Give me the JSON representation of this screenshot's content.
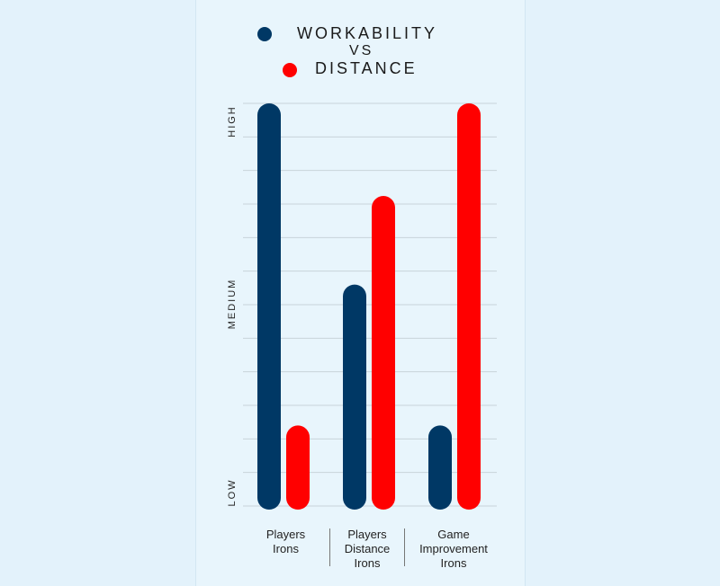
{
  "legend": {
    "series_a": "WORKABILITY",
    "connector": "VS",
    "series_b": "DISTANCE"
  },
  "colors": {
    "workability": "#003865",
    "distance": "#ff0000",
    "grid": "#c9d3da"
  },
  "chart_data": {
    "type": "bar",
    "title": "",
    "categories": [
      "Players Irons",
      "Players Distance Irons",
      "Game Improvement Irons"
    ],
    "category_lines": [
      [
        "Players",
        "Irons"
      ],
      [
        "Players",
        "Distance",
        "Irons"
      ],
      [
        "Game",
        "Improvement",
        "Irons"
      ]
    ],
    "y_tick_labels": [
      "LOW",
      "MEDIUM",
      "HIGH"
    ],
    "ylim": [
      0,
      100
    ],
    "grid": true,
    "legend_position": "top",
    "series": [
      {
        "name": "WORKABILITY",
        "color": "#003865",
        "values": [
          100,
          55,
          20
        ]
      },
      {
        "name": "DISTANCE",
        "color": "#ff0000",
        "values": [
          20,
          77,
          100
        ]
      }
    ]
  }
}
